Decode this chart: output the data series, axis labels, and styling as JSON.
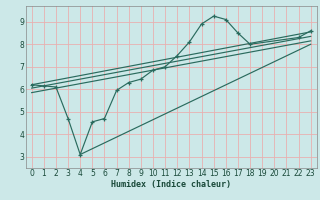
{
  "bg_color": "#cce8e8",
  "grid_color": "#e8b0b0",
  "line_color": "#2a6b5e",
  "xlabel": "Humidex (Indice chaleur)",
  "xlim": [
    -0.5,
    23.5
  ],
  "ylim": [
    2.5,
    9.7
  ],
  "xticks": [
    0,
    1,
    2,
    3,
    4,
    5,
    6,
    7,
    8,
    9,
    10,
    11,
    12,
    13,
    14,
    15,
    16,
    17,
    18,
    19,
    20,
    21,
    22,
    23
  ],
  "yticks": [
    3,
    4,
    5,
    6,
    7,
    8,
    9
  ],
  "curve1_x": [
    0,
    1,
    2,
    3,
    4,
    5,
    6,
    7,
    8,
    9,
    10,
    11,
    12,
    13,
    14,
    15,
    16,
    17,
    18,
    22,
    23
  ],
  "curve1_y": [
    6.2,
    6.15,
    6.1,
    4.7,
    3.1,
    4.55,
    4.7,
    5.95,
    6.3,
    6.45,
    6.85,
    7.0,
    7.5,
    8.1,
    8.9,
    9.25,
    9.1,
    8.5,
    8.0,
    8.3,
    8.6
  ],
  "line2_x": [
    0,
    23
  ],
  "line2_y": [
    6.2,
    8.55
  ],
  "line3_x": [
    0,
    23
  ],
  "line3_y": [
    6.05,
    8.35
  ],
  "line4_x": [
    0,
    23
  ],
  "line4_y": [
    5.85,
    8.15
  ],
  "line5_x": [
    4,
    23
  ],
  "line5_y": [
    3.1,
    8.0
  ]
}
